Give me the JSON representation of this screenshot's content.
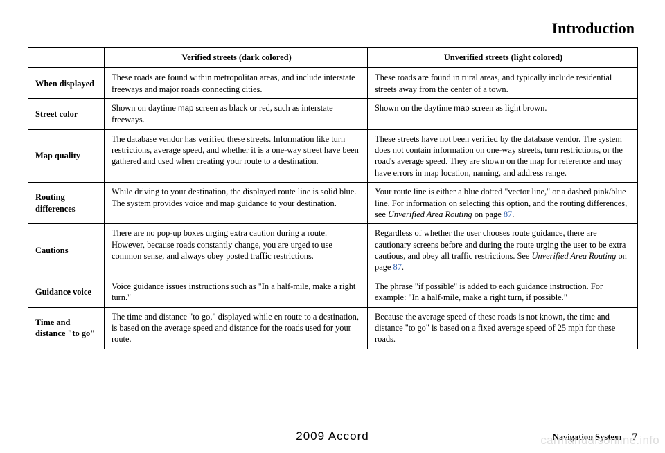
{
  "title": "Introduction",
  "table": {
    "headers": {
      "col2": "Verified streets (dark colored)",
      "col3": "Unverified streets (light colored)"
    },
    "rows": [
      {
        "label": "When displayed",
        "verified": "These roads are found within metropolitan areas, and include interstate freeways and major roads connecting cities.",
        "unverified": "These roads are found in rural areas, and typically include residential streets away from the center of a town."
      },
      {
        "label": "Street color",
        "verified_pre": "Shown on daytime ",
        "verified_sans": "map",
        "verified_post": " screen as black or red, such as interstate freeways.",
        "unverified_pre": "Shown on the daytime ",
        "unverified_sans": "map",
        "unverified_post": " screen as light brown."
      },
      {
        "label": "Map quality",
        "verified": "The database vendor has verified these streets. Information like turn restrictions, average speed, and whether it is a one-way street have been gathered and used when creating your route to a destination.",
        "unverified": "These streets have not been verified by the database vendor. The system does not contain information on one-way streets, turn restrictions, or the road's average speed. They are shown on the map for reference and may have errors in map location, naming, and address range."
      },
      {
        "label": "Routing differences",
        "verified": "While driving to your destination, the displayed route line is solid blue. The system provides voice and map guidance to your destination.",
        "unverified_pre": "Your route line is either a blue dotted \"vector line,\" or a dashed pink/blue line. For information on selecting this option, and the routing differences, see ",
        "unverified_italic": "Unverified Area Routing",
        "unverified_mid": " on page ",
        "unverified_link": "87",
        "unverified_post": "."
      },
      {
        "label": "Cautions",
        "verified": "There are no pop-up boxes urging extra caution during a route. However, because roads constantly change, you are urged to use common sense, and always obey posted traffic restrictions.",
        "unverified_pre": "Regardless of whether the user chooses route guidance, there are cautionary screens before and during the route urging the user to be extra cautious, and obey all traffic restrictions. See ",
        "unverified_italic": "Unverified Area Routing",
        "unverified_mid": " on page ",
        "unverified_link": "87",
        "unverified_post": "."
      },
      {
        "label": "Guidance voice",
        "verified": "Voice guidance issues instructions such as \"In a half-mile, make a right turn.\"",
        "unverified": "The phrase \"if possible\" is added to each guidance instruction. For example: \"In a half-mile, make a right turn, if possible.\""
      },
      {
        "label": "Time and distance \"to go\"",
        "verified": "The time and distance \"to go,\" displayed while en route to a destination, is based on the average speed and distance for the roads used for your route.",
        "unverified": "Because the average speed of these roads is not known, the time and distance \"to go\" is based on a fixed average speed of 25 mph for these roads."
      }
    ]
  },
  "footer": {
    "center": "2009   Accord",
    "right_label": "Navigation System",
    "page": "7"
  },
  "watermark": "carmanualsonline.info",
  "colors": {
    "link": "#2a5db0",
    "watermark": "#dddddd",
    "border": "#000000"
  }
}
